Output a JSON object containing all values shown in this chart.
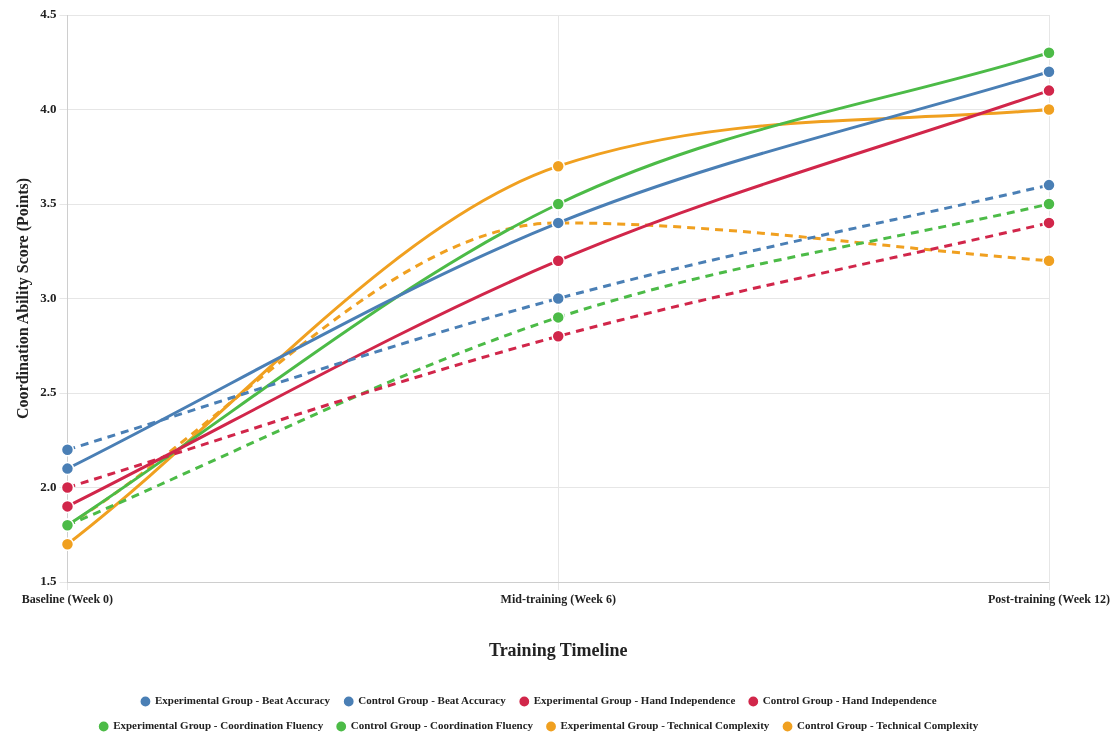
{
  "chart_data": {
    "type": "line",
    "xlabel": "Training Timeline",
    "ylabel": "Coordination Ability Score (Points)",
    "categories": [
      "Baseline (Week 0)",
      "Mid-training (Week 6)",
      "Post-training (Week 12)"
    ],
    "series": [
      {
        "name": "Experimental Group - Beat Accuracy",
        "color": "#4a7fb5",
        "values": [
          2.1,
          3.4,
          4.2
        ],
        "line_style": "solid"
      },
      {
        "name": "Control Group - Beat Accuracy",
        "color": "#4a7fb5",
        "values": [
          2.2,
          3.0,
          3.6
        ],
        "line_style": "dashed"
      },
      {
        "name": "Experimental Group - Hand Independence",
        "color": "#d1264a",
        "values": [
          1.9,
          3.2,
          4.1
        ],
        "line_style": "solid"
      },
      {
        "name": "Control Group - Hand Independence",
        "color": "#d1264a",
        "values": [
          2.0,
          2.8,
          3.4
        ],
        "line_style": "dashed"
      },
      {
        "name": "Experimental Group - Coordination Fluency",
        "color": "#4cbb47",
        "values": [
          1.8,
          3.5,
          4.3
        ],
        "line_style": "solid"
      },
      {
        "name": "Control Group - Coordination Fluency",
        "color": "#4cbb47",
        "values": [
          1.8,
          2.9,
          3.5
        ],
        "line_style": "dashed"
      },
      {
        "name": "Experimental Group - Technical Complexity",
        "color": "#f0a020",
        "values": [
          1.7,
          3.7,
          4.0
        ],
        "line_style": "solid"
      },
      {
        "name": "Control Group - Technical Complexity",
        "color": "#f0a020",
        "values": [
          1.8,
          3.4,
          3.2
        ],
        "line_style": "dashed"
      }
    ],
    "ylim": [
      1.5,
      4.5
    ],
    "yticks": [
      1.5,
      {
        "value": 2,
        "label": "2.0"
      },
      2.5,
      {
        "value": 3,
        "label": "3.0"
      },
      3.5,
      {
        "value": 4,
        "label": "4.0"
      },
      4.5
    ],
    "grid": true,
    "legend": "bottom",
    "marker": "circle"
  }
}
